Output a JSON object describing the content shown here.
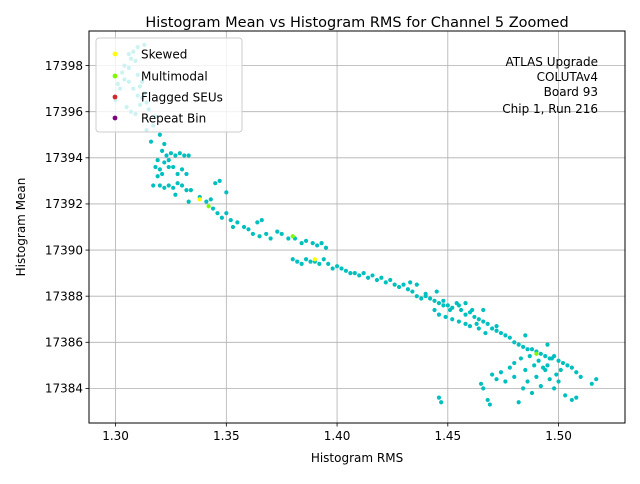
{
  "chart_data": {
    "type": "scatter",
    "title": "Histogram Mean vs Histogram RMS for Channel 5 Zoomed",
    "xlabel": "Histogram RMS",
    "ylabel": "Histogram Mean",
    "xlim": [
      1.288,
      1.53
    ],
    "ylim": [
      17382.5,
      17399.5
    ],
    "xticks": [
      1.3,
      1.35,
      1.4,
      1.45,
      1.5
    ],
    "xtick_labels": [
      "1.30",
      "1.35",
      "1.40",
      "1.45",
      "1.50"
    ],
    "yticks": [
      17384,
      17386,
      17388,
      17390,
      17392,
      17394,
      17396,
      17398
    ],
    "ytick_labels": [
      "17384",
      "17386",
      "17388",
      "17390",
      "17392",
      "17394",
      "17396",
      "17398"
    ],
    "grid": true,
    "legend_position": "top-left",
    "annotation_lines": [
      "ATLAS Upgrade",
      "COLUTAv4",
      "Board 93",
      "Chip 1, Run 216"
    ],
    "series": [
      {
        "name": "Default",
        "color": "#00bfbf",
        "in_legend": false,
        "points": [
          [
            1.3,
            17396.5
          ],
          [
            1.302,
            17397.0
          ],
          [
            1.304,
            17397.4
          ],
          [
            1.306,
            17397.9
          ],
          [
            1.307,
            17398.3
          ],
          [
            1.308,
            17398.6
          ],
          [
            1.309,
            17398.2
          ],
          [
            1.31,
            17397.6
          ],
          [
            1.311,
            17397.1
          ],
          [
            1.312,
            17396.6
          ],
          [
            1.305,
            17396.2
          ],
          [
            1.307,
            17396.0
          ],
          [
            1.309,
            17395.9
          ],
          [
            1.311,
            17396.3
          ],
          [
            1.313,
            17396.8
          ],
          [
            1.303,
            17397.7
          ],
          [
            1.306,
            17397.3
          ],
          [
            1.308,
            17397.0
          ],
          [
            1.31,
            17396.7
          ],
          [
            1.312,
            17397.3
          ],
          [
            1.314,
            17396.4
          ],
          [
            1.301,
            17397.2
          ],
          [
            1.304,
            17398.0
          ],
          [
            1.306,
            17398.5
          ],
          [
            1.31,
            17398.8
          ],
          [
            1.313,
            17398.9
          ],
          [
            1.315,
            17396.1
          ],
          [
            1.317,
            17395.4
          ],
          [
            1.314,
            17395.2
          ],
          [
            1.318,
            17395.8
          ],
          [
            1.316,
            17394.7
          ],
          [
            1.319,
            17393.9
          ],
          [
            1.321,
            17394.3
          ],
          [
            1.32,
            17395.0
          ],
          [
            1.322,
            17394.6
          ],
          [
            1.323,
            17394.1
          ],
          [
            1.324,
            17393.6
          ],
          [
            1.325,
            17394.2
          ],
          [
            1.327,
            17394.1
          ],
          [
            1.329,
            17394.2
          ],
          [
            1.331,
            17394.1
          ],
          [
            1.333,
            17394.1
          ],
          [
            1.318,
            17393.6
          ],
          [
            1.32,
            17393.5
          ],
          [
            1.322,
            17393.8
          ],
          [
            1.324,
            17393.9
          ],
          [
            1.319,
            17393.2
          ],
          [
            1.321,
            17393.3
          ],
          [
            1.326,
            17393.6
          ],
          [
            1.328,
            17393.3
          ],
          [
            1.33,
            17393.5
          ],
          [
            1.332,
            17393.3
          ],
          [
            1.317,
            17392.8
          ],
          [
            1.32,
            17392.8
          ],
          [
            1.322,
            17392.7
          ],
          [
            1.324,
            17392.8
          ],
          [
            1.326,
            17392.7
          ],
          [
            1.328,
            17392.9
          ],
          [
            1.33,
            17392.8
          ],
          [
            1.327,
            17392.4
          ],
          [
            1.332,
            17392.6
          ],
          [
            1.334,
            17392.6
          ],
          [
            1.333,
            17392.1
          ],
          [
            1.338,
            17392.3
          ],
          [
            1.345,
            17392.9
          ],
          [
            1.347,
            17393.0
          ],
          [
            1.35,
            17392.5
          ],
          [
            1.341,
            17392.1
          ],
          [
            1.343,
            17392.2
          ],
          [
            1.344,
            17391.8
          ],
          [
            1.346,
            17391.6
          ],
          [
            1.348,
            17391.4
          ],
          [
            1.35,
            17391.6
          ],
          [
            1.352,
            17391.3
          ],
          [
            1.355,
            17391.2
          ],
          [
            1.353,
            17391.0
          ],
          [
            1.358,
            17391.0
          ],
          [
            1.36,
            17390.9
          ],
          [
            1.362,
            17390.7
          ],
          [
            1.364,
            17391.2
          ],
          [
            1.366,
            17391.3
          ],
          [
            1.365,
            17390.6
          ],
          [
            1.368,
            17390.7
          ],
          [
            1.37,
            17390.5
          ],
          [
            1.373,
            17390.8
          ],
          [
            1.375,
            17390.7
          ],
          [
            1.378,
            17390.5
          ],
          [
            1.381,
            17390.5
          ],
          [
            1.384,
            17390.3
          ],
          [
            1.386,
            17390.4
          ],
          [
            1.389,
            17390.3
          ],
          [
            1.391,
            17390.2
          ],
          [
            1.393,
            17390.3
          ],
          [
            1.395,
            17390.1
          ],
          [
            1.38,
            17389.6
          ],
          [
            1.382,
            17389.5
          ],
          [
            1.384,
            17389.4
          ],
          [
            1.386,
            17389.6
          ],
          [
            1.388,
            17389.5
          ],
          [
            1.39,
            17389.5
          ],
          [
            1.392,
            17389.4
          ],
          [
            1.394,
            17389.6
          ],
          [
            1.396,
            17389.4
          ],
          [
            1.398,
            17389.2
          ],
          [
            1.4,
            17389.3
          ],
          [
            1.402,
            17389.2
          ],
          [
            1.404,
            17389.1
          ],
          [
            1.406,
            17389.0
          ],
          [
            1.408,
            17389.0
          ],
          [
            1.41,
            17388.9
          ],
          [
            1.412,
            17389.0
          ],
          [
            1.414,
            17388.8
          ],
          [
            1.416,
            17388.9
          ],
          [
            1.418,
            17388.7
          ],
          [
            1.42,
            17388.8
          ],
          [
            1.422,
            17388.6
          ],
          [
            1.424,
            17388.7
          ],
          [
            1.426,
            17388.5
          ],
          [
            1.428,
            17388.4
          ],
          [
            1.43,
            17388.5
          ],
          [
            1.432,
            17388.3
          ],
          [
            1.434,
            17388.2
          ],
          [
            1.436,
            17388.0
          ],
          [
            1.438,
            17387.9
          ],
          [
            1.44,
            17388.0
          ],
          [
            1.442,
            17387.9
          ],
          [
            1.444,
            17387.8
          ],
          [
            1.446,
            17387.7
          ],
          [
            1.448,
            17387.8
          ],
          [
            1.45,
            17387.6
          ],
          [
            1.452,
            17387.5
          ],
          [
            1.454,
            17387.7
          ],
          [
            1.456,
            17387.4
          ],
          [
            1.458,
            17387.2
          ],
          [
            1.46,
            17387.3
          ],
          [
            1.462,
            17387.1
          ],
          [
            1.464,
            17387.0
          ],
          [
            1.466,
            17386.9
          ],
          [
            1.468,
            17386.8
          ],
          [
            1.47,
            17386.6
          ],
          [
            1.472,
            17386.5
          ],
          [
            1.474,
            17386.4
          ],
          [
            1.476,
            17386.3
          ],
          [
            1.478,
            17386.2
          ],
          [
            1.48,
            17386.0
          ],
          [
            1.482,
            17385.9
          ],
          [
            1.484,
            17385.8
          ],
          [
            1.486,
            17385.7
          ],
          [
            1.488,
            17385.7
          ],
          [
            1.49,
            17385.6
          ],
          [
            1.492,
            17385.5
          ],
          [
            1.494,
            17385.4
          ],
          [
            1.496,
            17385.3
          ],
          [
            1.498,
            17385.4
          ],
          [
            1.5,
            17385.2
          ],
          [
            1.502,
            17385.1
          ],
          [
            1.504,
            17385.0
          ],
          [
            1.506,
            17384.9
          ],
          [
            1.508,
            17384.7
          ],
          [
            1.51,
            17384.5
          ],
          [
            1.515,
            17384.2
          ],
          [
            1.517,
            17384.4
          ],
          [
            1.446,
            17383.6
          ],
          [
            1.447,
            17383.4
          ],
          [
            1.465,
            17384.2
          ],
          [
            1.466,
            17384.0
          ],
          [
            1.468,
            17383.5
          ],
          [
            1.469,
            17383.3
          ],
          [
            1.47,
            17384.6
          ],
          [
            1.472,
            17384.4
          ],
          [
            1.474,
            17384.7
          ],
          [
            1.476,
            17384.3
          ],
          [
            1.478,
            17384.9
          ],
          [
            1.48,
            17384.5
          ],
          [
            1.482,
            17383.4
          ],
          [
            1.484,
            17384.0
          ],
          [
            1.486,
            17384.3
          ],
          [
            1.488,
            17383.8
          ],
          [
            1.49,
            17384.5
          ],
          [
            1.492,
            17384.1
          ],
          [
            1.494,
            17384.8
          ],
          [
            1.496,
            17384.4
          ],
          [
            1.498,
            17384.0
          ],
          [
            1.5,
            17384.3
          ],
          [
            1.503,
            17383.7
          ],
          [
            1.506,
            17383.5
          ],
          [
            1.508,
            17383.6
          ],
          [
            1.48,
            17385.1
          ],
          [
            1.483,
            17385.3
          ],
          [
            1.485,
            17384.8
          ],
          [
            1.487,
            17385.4
          ],
          [
            1.489,
            17385.0
          ],
          [
            1.491,
            17385.2
          ],
          [
            1.493,
            17384.9
          ],
          [
            1.495,
            17385.0
          ],
          [
            1.497,
            17385.3
          ],
          [
            1.499,
            17384.6
          ],
          [
            1.501,
            17384.8
          ],
          [
            1.485,
            17386.3
          ],
          [
            1.495,
            17385.9
          ],
          [
            1.433,
            17388.6
          ],
          [
            1.436,
            17388.5
          ],
          [
            1.44,
            17388.1
          ],
          [
            1.445,
            17388.2
          ],
          [
            1.448,
            17387.6
          ],
          [
            1.451,
            17387.4
          ],
          [
            1.455,
            17387.6
          ],
          [
            1.458,
            17387.7
          ],
          [
            1.461,
            17387.4
          ],
          [
            1.464,
            17386.6
          ],
          [
            1.467,
            17386.4
          ],
          [
            1.472,
            17386.7
          ],
          [
            1.444,
            17387.4
          ],
          [
            1.446,
            17387.2
          ],
          [
            1.449,
            17387.1
          ],
          [
            1.452,
            17387.0
          ],
          [
            1.455,
            17386.9
          ],
          [
            1.458,
            17386.8
          ],
          [
            1.46,
            17386.7
          ],
          [
            1.463,
            17386.8
          ],
          [
            1.466,
            17387.4
          ]
        ]
      },
      {
        "name": "Skewed",
        "color": "#ffff00",
        "in_legend": true,
        "points": [
          [
            1.338,
            17392.2
          ],
          [
            1.39,
            17389.6
          ]
        ]
      },
      {
        "name": "Multimodal",
        "color": "#7cfc00",
        "in_legend": true,
        "points": [
          [
            1.342,
            17391.9
          ],
          [
            1.38,
            17390.6
          ],
          [
            1.49,
            17385.5
          ]
        ]
      },
      {
        "name": "Flagged SEUs",
        "color": "#d62728",
        "in_legend": true,
        "points": []
      },
      {
        "name": "Repeat Bin",
        "color": "#800080",
        "in_legend": true,
        "points": []
      }
    ]
  }
}
